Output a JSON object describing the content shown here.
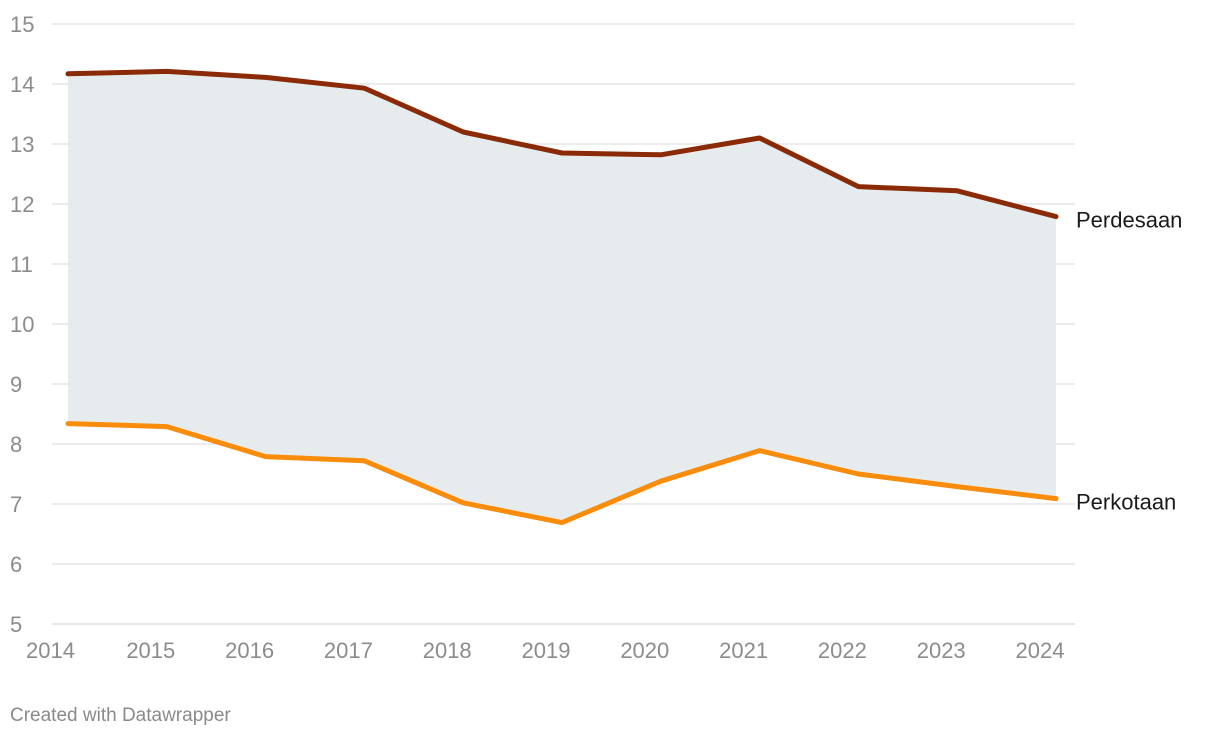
{
  "colors": {
    "perdesaan": "#8b2a06",
    "perkotaan": "#f98c0a",
    "band_fill": "#e6ecee",
    "gridline": "#d9d9d9",
    "tick_text": "#8c8c8c",
    "label_text": "#1a1a1a"
  },
  "chart_data": {
    "type": "line",
    "title": "",
    "xlabel": "",
    "ylabel": "",
    "x": [
      2014.15,
      2015.15,
      2016.15,
      2017.15,
      2018.15,
      2019.15,
      2020.15,
      2021.15,
      2022.15,
      2023.15,
      2024.15
    ],
    "ylim": [
      5,
      15
    ],
    "xlim": [
      2014,
      2024.2
    ],
    "yticks": [
      5,
      6,
      7,
      8,
      9,
      10,
      11,
      12,
      13,
      14,
      15
    ],
    "xticks": [
      2014,
      2015,
      2016,
      2017,
      2018,
      2019,
      2020,
      2021,
      2022,
      2023,
      2024
    ],
    "grid": true,
    "legend": "inline-right",
    "band_between_series": true,
    "series": [
      {
        "name": "Perdesaan",
        "color_key": "perdesaan",
        "values": [
          14.17,
          14.21,
          14.11,
          13.93,
          13.2,
          12.85,
          12.82,
          13.1,
          12.29,
          12.22,
          11.79
        ]
      },
      {
        "name": "Perkotaan",
        "color_key": "perkotaan",
        "values": [
          8.34,
          8.29,
          7.79,
          7.72,
          7.02,
          6.69,
          7.38,
          7.89,
          7.5,
          7.29,
          7.09
        ]
      }
    ]
  },
  "footer": {
    "credit": "Created with Datawrapper"
  }
}
